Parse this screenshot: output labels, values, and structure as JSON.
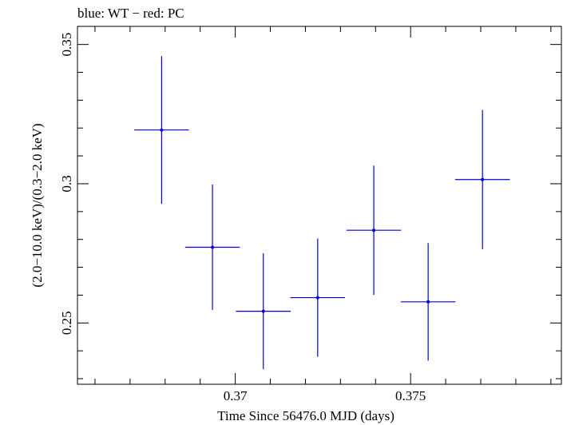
{
  "chart_data": {
    "type": "scatter",
    "title": "blue: WT − red: PC",
    "xlabel": "Time Since 56476.0 MJD (days)",
    "ylabel": "(2.0−10.0 keV)/(0.3−2.0 keV)",
    "xlim": [
      0.3655,
      0.3793
    ],
    "ylim": [
      0.228,
      0.3565
    ],
    "x_ticks": [
      {
        "value": 0.37,
        "label": "0.37"
      },
      {
        "value": 0.375,
        "label": "0.375"
      }
    ],
    "y_ticks": [
      {
        "value": 0.25,
        "label": "0.25"
      },
      {
        "value": 0.3,
        "label": "0.3"
      },
      {
        "value": 0.35,
        "label": "0.35"
      }
    ],
    "series": [
      {
        "name": "WT",
        "color": "#0000dd",
        "points": [
          {
            "x": 0.3679,
            "xerr": 0.00078,
            "y": 0.3193,
            "yerr_lo": 0.0265,
            "yerr_hi": 0.0265
          },
          {
            "x": 0.36935,
            "xerr": 0.00078,
            "y": 0.2772,
            "yerr_lo": 0.0225,
            "yerr_hi": 0.0225
          },
          {
            "x": 0.3708,
            "xerr": 0.00078,
            "y": 0.2542,
            "yerr_lo": 0.0208,
            "yerr_hi": 0.0208
          },
          {
            "x": 0.37235,
            "xerr": 0.00078,
            "y": 0.2591,
            "yerr_lo": 0.0212,
            "yerr_hi": 0.0212
          },
          {
            "x": 0.37395,
            "xerr": 0.00078,
            "y": 0.2833,
            "yerr_lo": 0.0232,
            "yerr_hi": 0.0232
          },
          {
            "x": 0.3755,
            "xerr": 0.00078,
            "y": 0.2576,
            "yerr_lo": 0.0211,
            "yerr_hi": 0.0211
          },
          {
            "x": 0.37705,
            "xerr": 0.00078,
            "y": 0.3015,
            "yerr_lo": 0.025,
            "yerr_hi": 0.025
          }
        ]
      }
    ]
  }
}
